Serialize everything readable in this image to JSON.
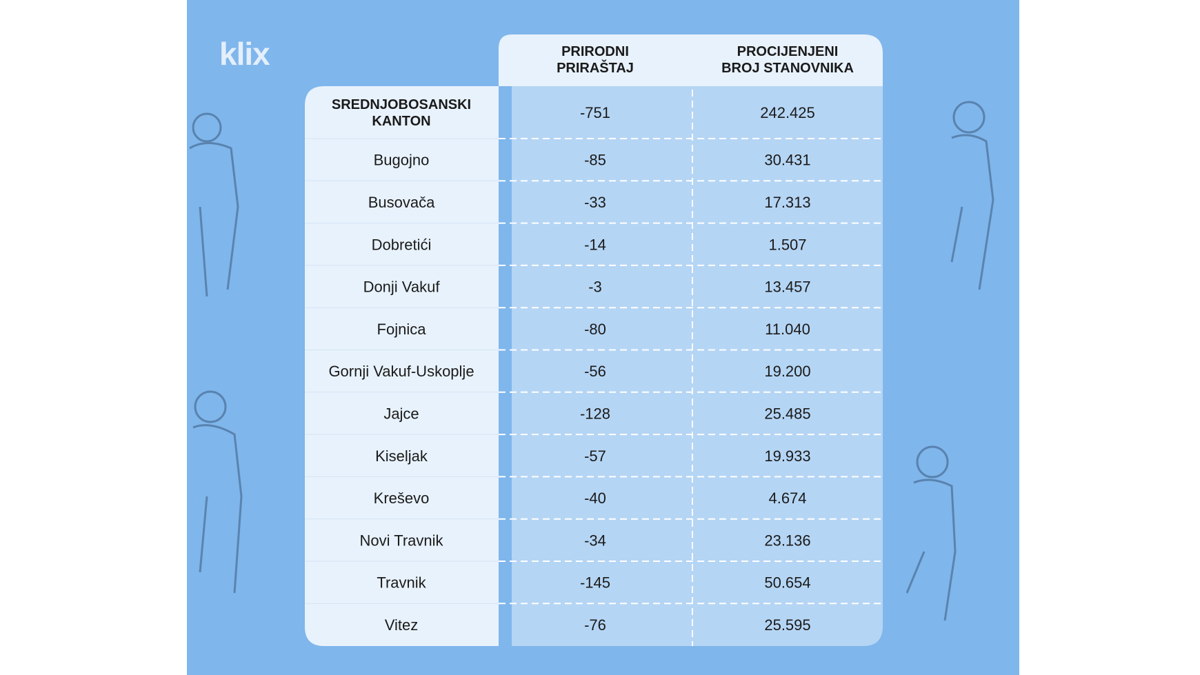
{
  "logo": "klix",
  "table": {
    "header": [
      "PRIRODNI\nPRIRAŠTAJ",
      "PROCIJENJENI\nBROJ STANOVNIKA"
    ],
    "rows": [
      [
        "SREDNJOBOSANSKI\nKANTON",
        "-751",
        "242.425"
      ],
      [
        "Bugojno",
        "-85",
        "30.431"
      ],
      [
        "Busovača",
        "-33",
        "17.313"
      ],
      [
        "Dobretići",
        "-14",
        "1.507"
      ],
      [
        "Donji Vakuf",
        "-3",
        "13.457"
      ],
      [
        "Fojnica",
        "-80",
        "11.040"
      ],
      [
        "Gornji Vakuf-Uskoplje",
        "-56",
        "19.200"
      ],
      [
        "Jajce",
        "-128",
        "25.485"
      ],
      [
        "Kiseljak",
        "-57",
        "19.933"
      ],
      [
        "Kreševo",
        "-40",
        "4.674"
      ],
      [
        "Novi Travnik",
        "-34",
        "23.136"
      ],
      [
        "Travnik",
        "-145",
        "50.654"
      ],
      [
        "Vitez",
        "-76",
        "25.595"
      ]
    ]
  }
}
